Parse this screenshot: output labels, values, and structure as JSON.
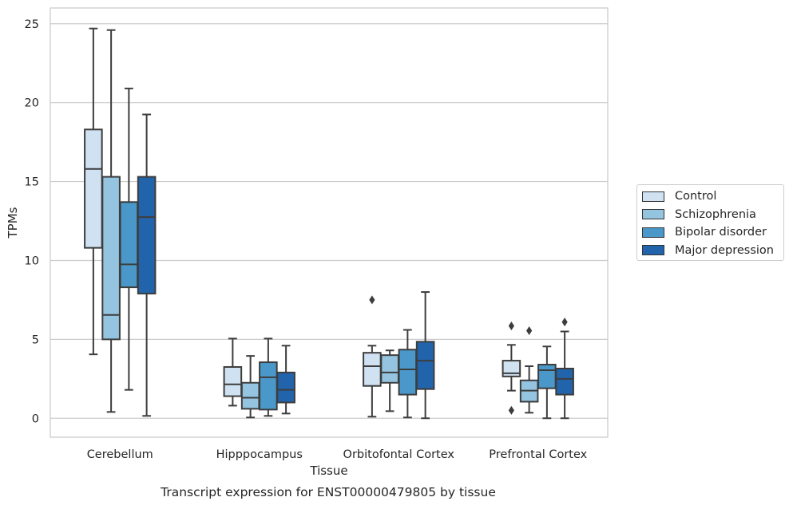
{
  "chart_data": {
    "type": "box",
    "title": "Transcript expression for ENST00000479805 by tissue",
    "xlabel": "Tissue",
    "ylabel": "TPMs",
    "ylim": [
      -1.2,
      26
    ],
    "yticks": [
      0,
      5,
      10,
      15,
      20,
      25
    ],
    "grid": "horizontal",
    "legend_position": "right",
    "categories": [
      "Cerebellum",
      "Hipppocampus",
      "Orbitofontal Cortex",
      "Prefrontal Cortex"
    ],
    "series": [
      {
        "name": "Control",
        "color": "#d0e1f2",
        "boxes": [
          {
            "whisker_low": 4.05,
            "q1": 10.8,
            "median": 15.8,
            "q3": 18.3,
            "whisker_high": 24.7,
            "outliers": []
          },
          {
            "whisker_low": 0.8,
            "q1": 1.4,
            "median": 2.15,
            "q3": 3.25,
            "whisker_high": 5.05,
            "outliers": []
          },
          {
            "whisker_low": 0.1,
            "q1": 2.05,
            "median": 3.3,
            "q3": 4.15,
            "whisker_high": 4.6,
            "outliers": [
              7.5
            ]
          },
          {
            "whisker_low": 1.75,
            "q1": 2.65,
            "median": 2.85,
            "q3": 3.65,
            "whisker_high": 4.65,
            "outliers": [
              5.85,
              0.5
            ]
          }
        ]
      },
      {
        "name": "Schizophrenia",
        "color": "#94c4df",
        "boxes": [
          {
            "whisker_low": 0.4,
            "q1": 5.0,
            "median": 6.55,
            "q3": 15.3,
            "whisker_high": 24.6,
            "outliers": []
          },
          {
            "whisker_low": 0.05,
            "q1": 0.6,
            "median": 1.3,
            "q3": 2.25,
            "whisker_high": 3.95,
            "outliers": []
          },
          {
            "whisker_low": 0.45,
            "q1": 2.25,
            "median": 2.9,
            "q3": 4.0,
            "whisker_high": 4.3,
            "outliers": []
          },
          {
            "whisker_low": 0.35,
            "q1": 1.05,
            "median": 1.75,
            "q3": 2.4,
            "whisker_high": 3.3,
            "outliers": [
              5.55
            ]
          }
        ]
      },
      {
        "name": "Bipolar disorder",
        "color": "#4a98c9",
        "boxes": [
          {
            "whisker_low": 1.8,
            "q1": 8.3,
            "median": 9.75,
            "q3": 13.7,
            "whisker_high": 20.9,
            "outliers": []
          },
          {
            "whisker_low": 0.15,
            "q1": 0.55,
            "median": 2.6,
            "q3": 3.55,
            "whisker_high": 5.05,
            "outliers": []
          },
          {
            "whisker_low": 0.05,
            "q1": 1.5,
            "median": 3.1,
            "q3": 4.35,
            "whisker_high": 5.6,
            "outliers": []
          },
          {
            "whisker_low": 0.0,
            "q1": 1.9,
            "median": 3.05,
            "q3": 3.4,
            "whisker_high": 4.55,
            "outliers": []
          }
        ]
      },
      {
        "name": "Major depression",
        "color": "#2164ab",
        "boxes": [
          {
            "whisker_low": 0.15,
            "q1": 7.9,
            "median": 12.75,
            "q3": 15.3,
            "whisker_high": 19.25,
            "outliers": []
          },
          {
            "whisker_low": 0.3,
            "q1": 1.0,
            "median": 1.8,
            "q3": 2.9,
            "whisker_high": 4.6,
            "outliers": []
          },
          {
            "whisker_low": 0.0,
            "q1": 1.85,
            "median": 3.65,
            "q3": 4.85,
            "whisker_high": 8.0,
            "outliers": []
          },
          {
            "whisker_low": 0.0,
            "q1": 1.5,
            "median": 2.5,
            "q3": 3.15,
            "whisker_high": 5.5,
            "outliers": [
              6.1
            ]
          }
        ]
      }
    ]
  }
}
